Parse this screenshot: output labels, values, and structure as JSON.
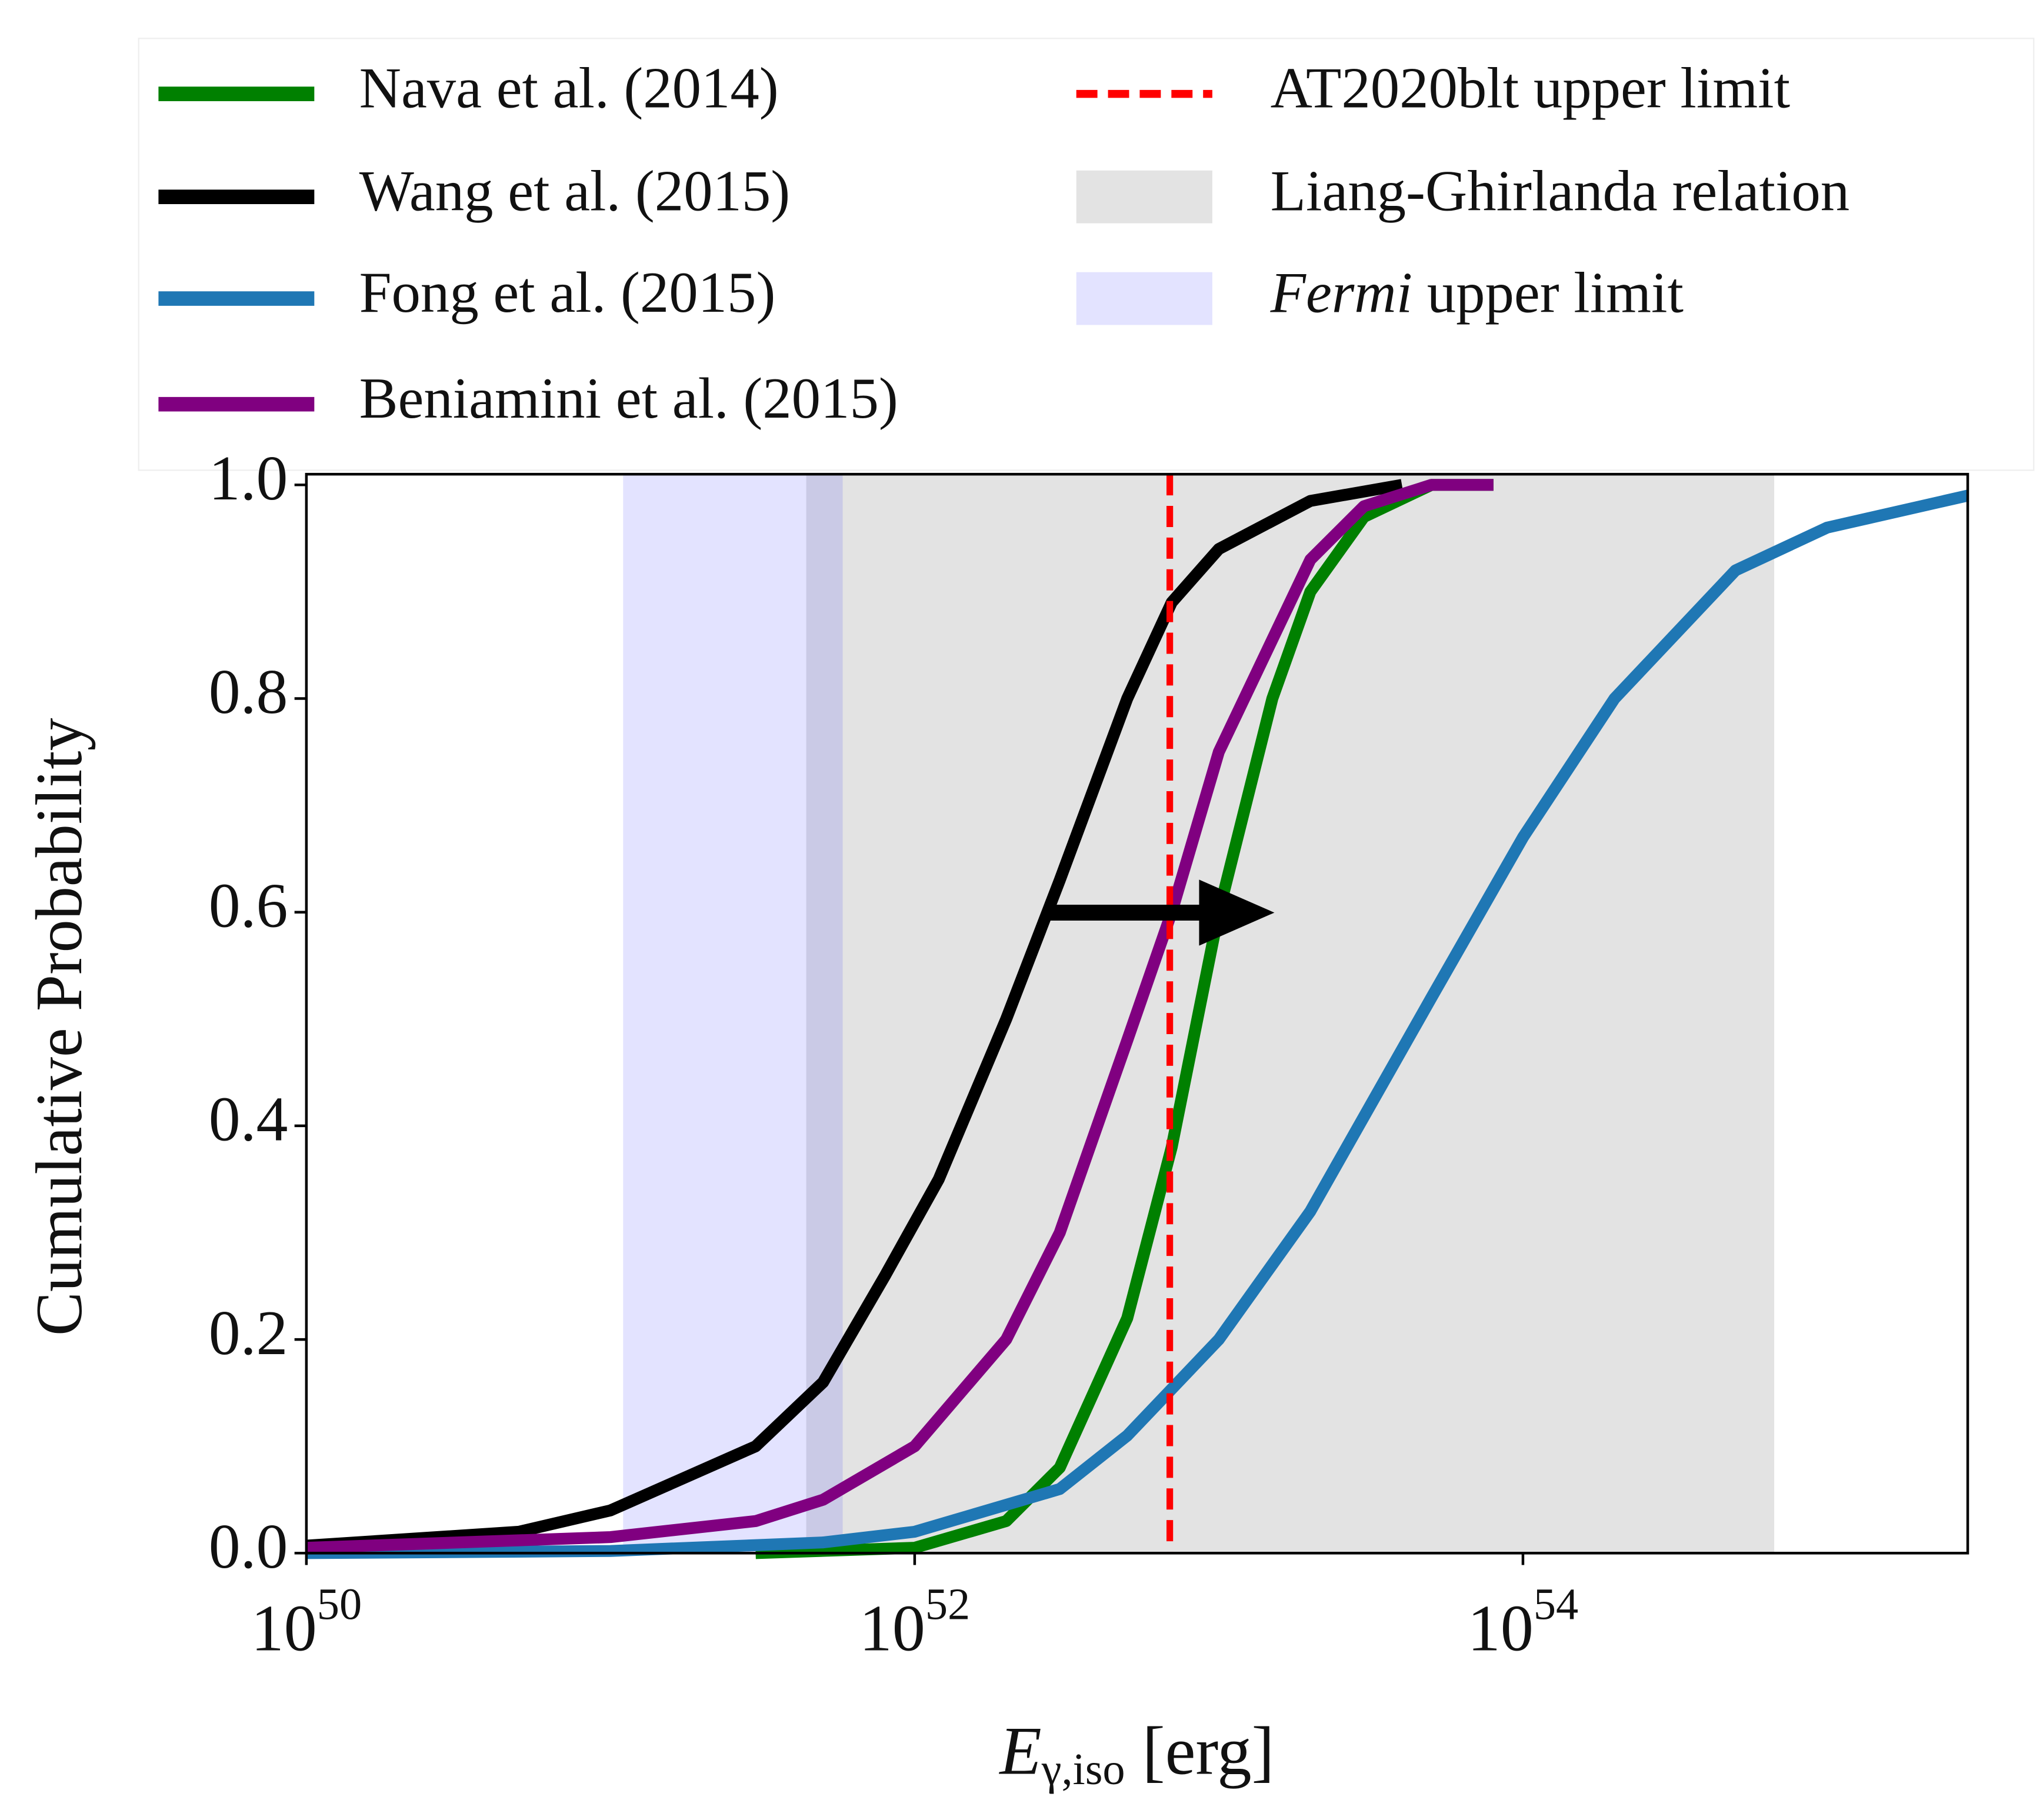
{
  "chart_data": {
    "type": "line",
    "xscale": "log",
    "x_label": "Eγ,iso [erg]",
    "y_label": "Cumulative Probability",
    "xlim": [
      1e+50,
      2.9e+55
    ],
    "ylim": [
      0,
      1.01
    ],
    "xticks": [
      {
        "value": 1e+50,
        "label": "1050"
      },
      {
        "value": 1e+52,
        "label": "1052"
      },
      {
        "value": 1e+54,
        "label": "1054"
      }
    ],
    "yticks": [
      {
        "value": 0,
        "label": "0.0"
      },
      0.2,
      0.4,
      0.6,
      0.8,
      {
        "value": 1,
        "label": "1.0"
      }
    ],
    "legend": "top",
    "series": [
      {
        "name": "Nava et al. (2014)",
        "color": "#008000",
        "x": [
          3e+51,
          1e+52,
          2e+52,
          3e+52,
          5e+52,
          7e+52,
          1e+53,
          1.5e+53,
          2e+53,
          3e+53,
          5e+53,
          8e+53
        ],
        "values": [
          0.0,
          0.005,
          0.03,
          0.08,
          0.22,
          0.38,
          0.6,
          0.8,
          0.9,
          0.97,
          1.0,
          1.0
        ]
      },
      {
        "name": "Wang et al. (2015)",
        "color": "#000000",
        "x": [
          1e+50,
          5e+50,
          1e+51,
          3e+51,
          5e+51,
          8e+51,
          1.2e+52,
          2e+52,
          3e+52,
          5e+52,
          7e+52,
          1e+53,
          2e+53,
          4e+53
        ],
        "values": [
          0.007,
          0.02,
          0.04,
          0.1,
          0.16,
          0.26,
          0.35,
          0.5,
          0.63,
          0.8,
          0.89,
          0.94,
          0.985,
          1.0
        ]
      },
      {
        "name": "Fong et al. (2015)",
        "color": "#1f77b4",
        "x": [
          1e+50,
          1e+51,
          5e+51,
          1e+52,
          3e+52,
          5e+52,
          1e+53,
          2e+53,
          5e+53,
          1e+54,
          2e+54,
          5e+54,
          1e+55,
          2.9e+55
        ],
        "values": [
          0.0,
          0.002,
          0.01,
          0.02,
          0.06,
          0.11,
          0.2,
          0.32,
          0.52,
          0.67,
          0.8,
          0.92,
          0.96,
          0.99
        ]
      },
      {
        "name": "Beniamini et al. (2015)",
        "color": "#800080",
        "x": [
          1e+50,
          1e+51,
          3e+51,
          5e+51,
          1e+52,
          2e+52,
          3e+52,
          5e+52,
          7e+52,
          1e+53,
          2e+53,
          3e+53,
          5e+53,
          8e+53
        ],
        "values": [
          0.005,
          0.015,
          0.03,
          0.05,
          0.1,
          0.2,
          0.3,
          0.48,
          0.6,
          0.75,
          0.93,
          0.98,
          1.0,
          1.0
        ]
      }
    ],
    "reference_lines": [
      {
        "name": "AT2020blt upper limit",
        "color": "#ff0000",
        "x": 6.9e+52
      }
    ],
    "spans": [
      {
        "name": "Liang-Ghirlanda relation",
        "color": "#808080",
        "x": [
          4.4e+51,
          6.7e+54
        ]
      },
      {
        "name": "Fermi upper limit",
        "color": "#0000ff",
        "x": [
          1.1e+51,
          5.8e+51
        ]
      }
    ]
  }
}
